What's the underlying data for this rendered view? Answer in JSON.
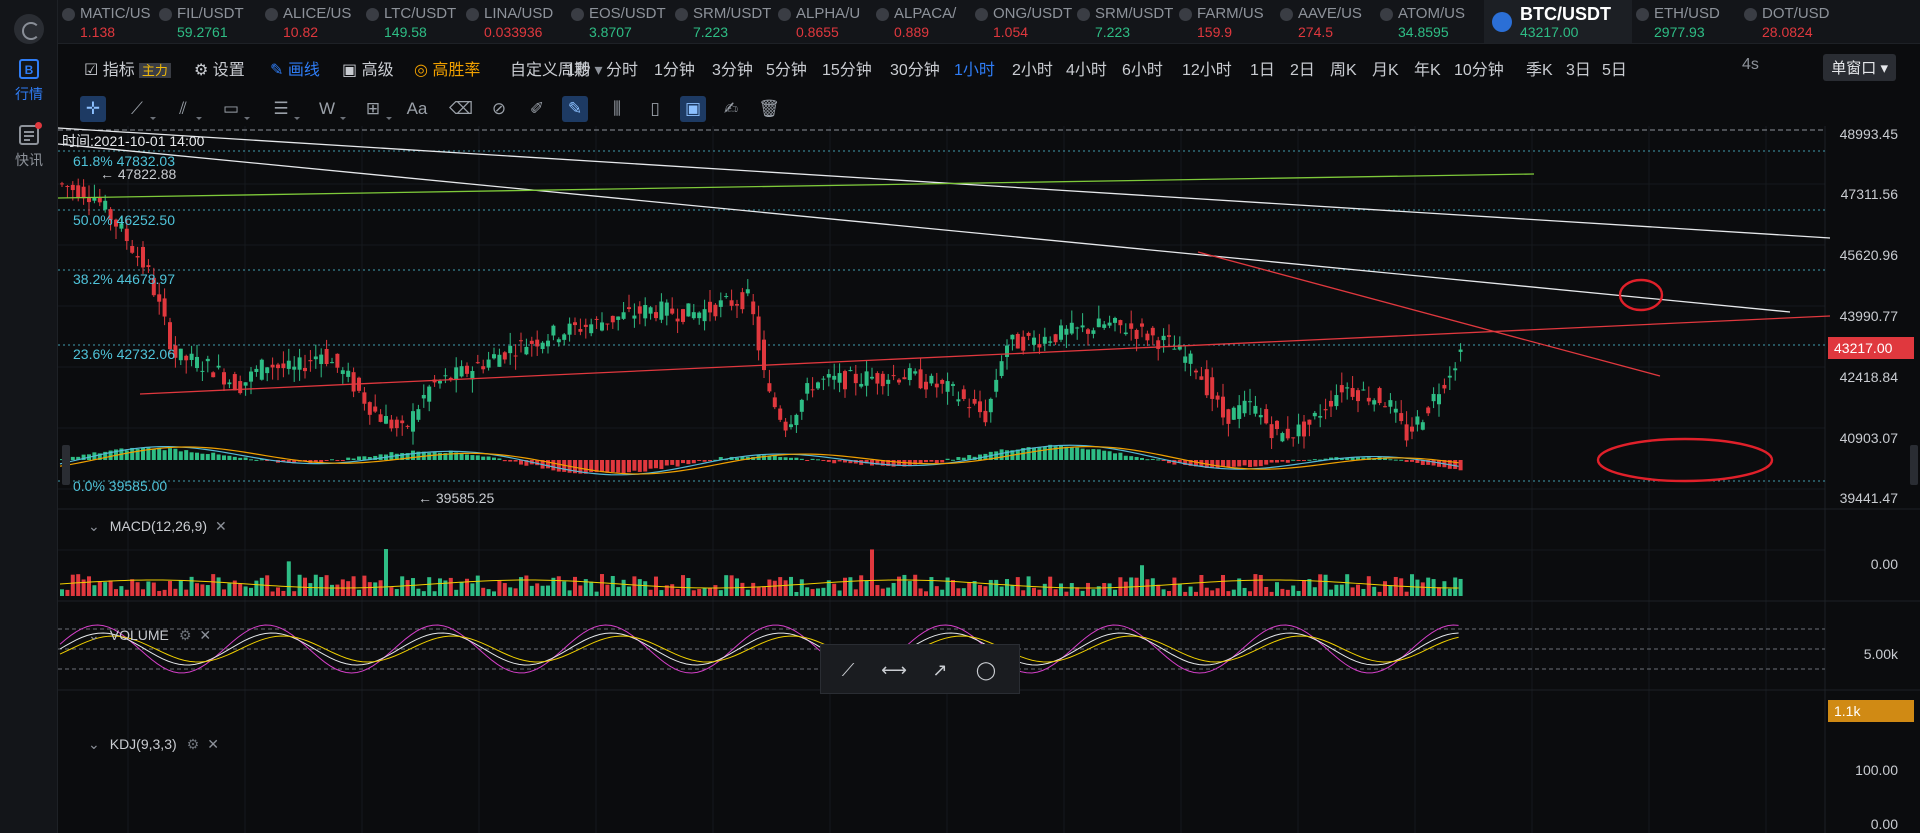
{
  "sidebar": {
    "items": [
      {
        "label": "行情",
        "icon": "market-icon",
        "active": true
      },
      {
        "label": "快讯",
        "icon": "news-icon",
        "active": false
      }
    ]
  },
  "tickers": [
    {
      "symbol": "MATIC/US",
      "price": "1.138",
      "dir": "down"
    },
    {
      "symbol": "FIL/USDT",
      "price": "59.2761",
      "dir": "up"
    },
    {
      "symbol": "ALICE/US",
      "price": "10.82",
      "dir": "down"
    },
    {
      "symbol": "LTC/USDT",
      "price": "149.58",
      "dir": "up"
    },
    {
      "symbol": "LINA/USD",
      "price": "0.033936",
      "dir": "down"
    },
    {
      "symbol": "EOS/USDT",
      "price": "3.8707",
      "dir": "up"
    },
    {
      "symbol": "SRM/USDT",
      "price": "7.223",
      "dir": "up"
    },
    {
      "symbol": "ALPHA/U",
      "price": "0.8655",
      "dir": "down"
    },
    {
      "symbol": "ALPACA/",
      "price": "0.889",
      "dir": "down"
    },
    {
      "symbol": "ONG/USDT",
      "price": "1.054",
      "dir": "down"
    },
    {
      "symbol": "SRM/USDT",
      "price": "7.223",
      "dir": "up"
    },
    {
      "symbol": "FARM/US",
      "price": "159.9",
      "dir": "down"
    },
    {
      "symbol": "AAVE/US",
      "price": "274.5",
      "dir": "down"
    },
    {
      "symbol": "ATOM/US",
      "price": "34.8595",
      "dir": "up"
    },
    {
      "symbol": "BTC/USDT",
      "price": "43217.00",
      "dir": "up",
      "active": true
    },
    {
      "symbol": "ETH/USD",
      "price": "2977.93",
      "dir": "up"
    },
    {
      "symbol": "DOT/USD",
      "price": "28.0824",
      "dir": "down"
    }
  ],
  "toolbar": {
    "indicator": "指标",
    "indicator_badge": "主力",
    "settings": "设置",
    "draw": "画线",
    "advanced": "高级",
    "winrate": "高胜率",
    "custom_period": "自定义周期",
    "periods": [
      "1秒",
      "分时",
      "1分钟",
      "3分钟",
      "5分钟",
      "15分钟",
      "30分钟",
      "1小时",
      "2小时",
      "4小时",
      "6小时",
      "12小时",
      "1日",
      "2日",
      "周K",
      "月K",
      "年K",
      "10分钟",
      "季K",
      "3日",
      "5日"
    ],
    "active_period": "1小时",
    "refresh": "4s",
    "window_mode": "单窗口"
  },
  "chart": {
    "time_label": "时间:2021-10-01 14:00",
    "fib_levels": [
      {
        "label": "61.8% 47832.03",
        "price": 47832.03
      },
      {
        "label": "50.0% 46252.50",
        "price": 46252.5
      },
      {
        "label": "38.2% 44678.97",
        "price": 44678.97
      },
      {
        "label": "23.6% 42732.06",
        "price": 42732.06
      },
      {
        "label": "0.0% 39585.00",
        "price": 39585.0
      }
    ],
    "high_marker": "47822.88",
    "low_marker": "39585.25",
    "price_axis": [
      "48993.45",
      "47311.56",
      "45620.96",
      "43990.77",
      "42418.84",
      "40903.07",
      "39441.47"
    ],
    "current_price": "43217.00",
    "price_color": "#e0383e"
  },
  "macd": {
    "title": "MACD(12,26,9)",
    "axis": [
      "0.00"
    ]
  },
  "volume": {
    "title": "VOLUME",
    "axis": [
      "5.00k"
    ],
    "current": "1.1k",
    "current_color": "#d08a14"
  },
  "kdj": {
    "title": "KDJ(9,3,3)",
    "axis": [
      "100.00",
      "0.00"
    ]
  },
  "colors": {
    "up": "#2ebd85",
    "down": "#e0383e",
    "accent": "#2f7df6",
    "fib": "#4fc3d9"
  }
}
